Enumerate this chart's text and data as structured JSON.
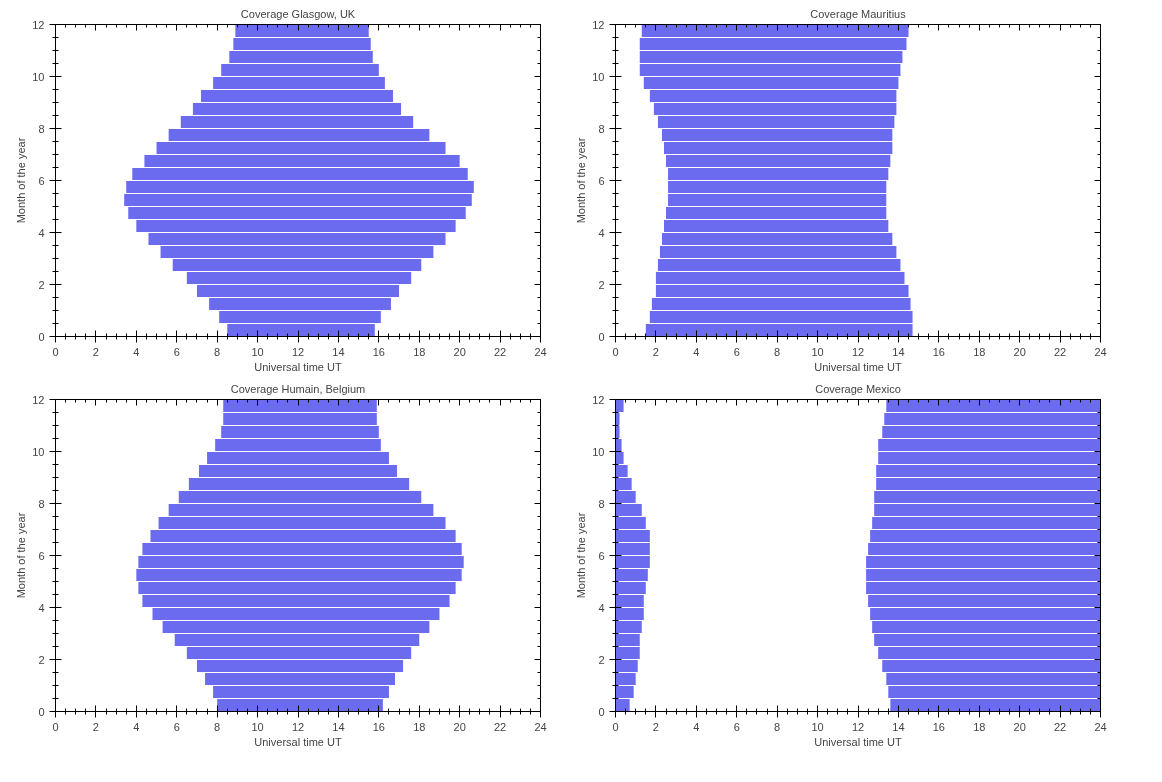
{
  "chart_data": [
    {
      "type": "bar",
      "orientation": "horizontal",
      "title": "Coverage Glasgow, UK",
      "xlabel": "Universal time UT",
      "ylabel": "Month of the year",
      "xlim": [
        0,
        24
      ],
      "xticks": [
        0,
        2,
        4,
        6,
        8,
        10,
        12,
        14,
        16,
        18,
        20,
        22,
        24
      ],
      "ylim": [
        0,
        12
      ],
      "yticks": [
        0,
        2,
        4,
        6,
        8,
        10,
        12
      ],
      "grid": false,
      "x": [
        0.25,
        0.75,
        1.25,
        1.75,
        2.25,
        2.75,
        3.25,
        3.75,
        4.25,
        4.75,
        5.25,
        5.75,
        6.25,
        6.75,
        7.25,
        7.75,
        8.25,
        8.75,
        9.25,
        9.75,
        10.25,
        10.75,
        11.25,
        11.75
      ],
      "series": [
        {
          "color": "#6b6bf0",
          "base": [
            8.5,
            8.1,
            7.6,
            7.0,
            6.5,
            5.8,
            5.2,
            4.6,
            4.0,
            3.6,
            3.4,
            3.5,
            3.8,
            4.4,
            5.0,
            5.6,
            6.2,
            6.8,
            7.2,
            7.8,
            8.2,
            8.6,
            8.8,
            8.9
          ],
          "values": [
            7.3,
            8.0,
            9.0,
            10.0,
            11.1,
            12.3,
            13.5,
            14.7,
            15.8,
            16.7,
            17.2,
            17.2,
            16.6,
            15.6,
            14.3,
            12.9,
            11.5,
            10.3,
            9.5,
            8.5,
            7.8,
            7.1,
            6.8,
            6.6
          ]
        }
      ]
    },
    {
      "type": "bar",
      "orientation": "horizontal",
      "title": "Coverage Mauritius",
      "xlabel": "Universal time UT",
      "ylabel": "Month of the year",
      "xlim": [
        0,
        24
      ],
      "xticks": [
        0,
        2,
        4,
        6,
        8,
        10,
        12,
        14,
        16,
        18,
        20,
        22,
        24
      ],
      "ylim": [
        0,
        12
      ],
      "yticks": [
        0,
        2,
        4,
        6,
        8,
        10,
        12
      ],
      "grid": false,
      "x": [
        0.25,
        0.75,
        1.25,
        1.75,
        2.25,
        2.75,
        3.25,
        3.75,
        4.25,
        4.75,
        5.25,
        5.75,
        6.25,
        6.75,
        7.25,
        7.75,
        8.25,
        8.75,
        9.25,
        9.75,
        10.25,
        10.75,
        11.25,
        11.75
      ],
      "series": [
        {
          "color": "#6b6bf0",
          "base": [
            1.5,
            1.7,
            1.8,
            2.0,
            2.0,
            2.1,
            2.2,
            2.3,
            2.4,
            2.5,
            2.6,
            2.6,
            2.6,
            2.5,
            2.4,
            2.3,
            2.1,
            1.9,
            1.7,
            1.4,
            1.2,
            1.2,
            1.2,
            1.3
          ],
          "values": [
            13.2,
            13.0,
            12.8,
            12.5,
            12.3,
            12.0,
            11.7,
            11.4,
            11.1,
            10.9,
            10.8,
            10.8,
            10.9,
            11.1,
            11.3,
            11.4,
            11.7,
            12.0,
            12.2,
            12.6,
            12.9,
            13.0,
            13.2,
            13.2
          ]
        }
      ]
    },
    {
      "type": "bar",
      "orientation": "horizontal",
      "title": "Coverage Humain, Belgium",
      "xlabel": "Universal time UT",
      "ylabel": "Month of the year",
      "xlim": [
        0,
        24
      ],
      "xticks": [
        0,
        2,
        4,
        6,
        8,
        10,
        12,
        14,
        16,
        18,
        20,
        22,
        24
      ],
      "ylim": [
        0,
        12
      ],
      "yticks": [
        0,
        2,
        4,
        6,
        8,
        10,
        12
      ],
      "grid": false,
      "x": [
        0.25,
        0.75,
        1.25,
        1.75,
        2.25,
        2.75,
        3.25,
        3.75,
        4.25,
        4.75,
        5.25,
        5.75,
        6.25,
        6.75,
        7.25,
        7.75,
        8.25,
        8.75,
        9.25,
        9.75,
        10.25,
        10.75,
        11.25,
        11.75
      ],
      "series": [
        {
          "color": "#6b6bf0",
          "base": [
            8.0,
            7.8,
            7.4,
            7.0,
            6.5,
            5.9,
            5.3,
            4.8,
            4.3,
            4.1,
            4.0,
            4.1,
            4.3,
            4.7,
            5.1,
            5.6,
            6.1,
            6.6,
            7.1,
            7.5,
            7.9,
            8.2,
            8.3,
            8.3
          ],
          "values": [
            8.2,
            8.7,
            9.4,
            10.2,
            11.1,
            12.1,
            13.2,
            14.2,
            15.2,
            15.7,
            16.1,
            16.1,
            15.8,
            15.1,
            14.2,
            13.1,
            12.0,
            10.9,
            9.8,
            9.0,
            8.2,
            7.8,
            7.6,
            7.6
          ]
        }
      ]
    },
    {
      "type": "bar",
      "orientation": "horizontal",
      "title": "Coverage Mexico",
      "xlabel": "Universal time UT",
      "ylabel": "Month of the year",
      "xlim": [
        0,
        24
      ],
      "xticks": [
        0,
        2,
        4,
        6,
        8,
        10,
        12,
        14,
        16,
        18,
        20,
        22,
        24
      ],
      "ylim": [
        0,
        12
      ],
      "yticks": [
        0,
        2,
        4,
        6,
        8,
        10,
        12
      ],
      "grid": false,
      "x": [
        0.25,
        0.75,
        1.25,
        1.75,
        2.25,
        2.75,
        3.25,
        3.75,
        4.25,
        4.75,
        5.25,
        5.75,
        6.25,
        6.75,
        7.25,
        7.75,
        8.25,
        8.75,
        9.25,
        9.75,
        10.25,
        10.75,
        11.25,
        11.75
      ],
      "series": [
        {
          "color": "#6b6bf0",
          "base": [
            0,
            0,
            0,
            0,
            0,
            0,
            0,
            0,
            0,
            0,
            0,
            0,
            0,
            0,
            0,
            0,
            0,
            0,
            0,
            0,
            0,
            0,
            0,
            0
          ],
          "values": [
            0.7,
            0.9,
            1.0,
            1.1,
            1.2,
            1.2,
            1.3,
            1.4,
            1.4,
            1.5,
            1.6,
            1.7,
            1.7,
            1.7,
            1.5,
            1.3,
            1.0,
            0.8,
            0.6,
            0.4,
            0.3,
            0.2,
            0.2,
            0.4
          ]
        },
        {
          "color": "#6b6bf0",
          "base": [
            13.6,
            13.5,
            13.4,
            13.2,
            13.0,
            12.8,
            12.7,
            12.6,
            12.5,
            12.4,
            12.4,
            12.4,
            12.5,
            12.6,
            12.7,
            12.8,
            12.8,
            12.9,
            12.9,
            13.0,
            13.0,
            13.2,
            13.3,
            13.4
          ],
          "values": [
            10.4,
            10.5,
            10.6,
            10.8,
            11.0,
            11.2,
            11.3,
            11.4,
            11.5,
            11.6,
            11.6,
            11.6,
            11.5,
            11.4,
            11.3,
            11.2,
            11.2,
            11.1,
            11.1,
            11.0,
            11.0,
            10.8,
            10.7,
            10.6
          ]
        }
      ]
    }
  ]
}
